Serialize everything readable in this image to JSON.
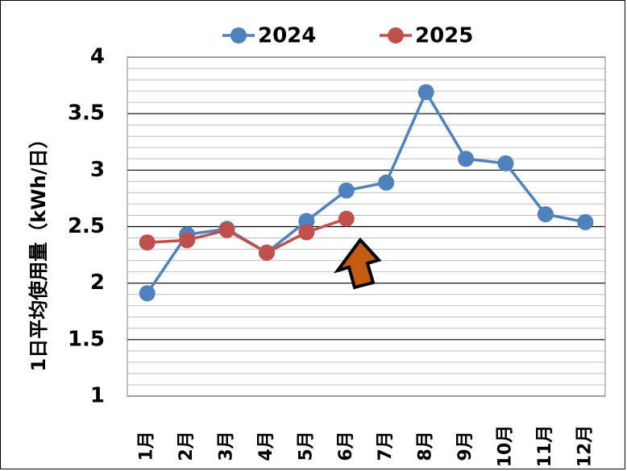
{
  "chart_data": {
    "type": "line",
    "title": "",
    "xlabel": "",
    "ylabel": "1日平均使用量（kWh/日）",
    "categories": [
      "1月",
      "2月",
      "3月",
      "4月",
      "5月",
      "6月",
      "7月",
      "8月",
      "9月",
      "10月",
      "11月",
      "12月"
    ],
    "ylim": [
      1,
      4
    ],
    "yticks": [
      "1",
      "1.5",
      "2",
      "2.5",
      "3",
      "3.5",
      "4"
    ],
    "ytick_values": [
      1,
      1.5,
      2,
      2.5,
      3,
      3.5,
      4
    ],
    "grid": true,
    "legend_position": "top",
    "series": [
      {
        "name": "2024",
        "color": "#4f81bd",
        "values": [
          1.91,
          2.43,
          2.48,
          2.27,
          2.55,
          2.82,
          2.89,
          3.69,
          3.1,
          3.06,
          2.61,
          2.54
        ]
      },
      {
        "name": "2025",
        "color": "#c0504d",
        "values": [
          2.36,
          2.38,
          2.47,
          2.27,
          2.45,
          2.57,
          null,
          null,
          null,
          null,
          null,
          null
        ]
      }
    ],
    "annotations": [
      {
        "type": "arrow",
        "color": "#c55a11",
        "points_to": "6月"
      }
    ]
  }
}
